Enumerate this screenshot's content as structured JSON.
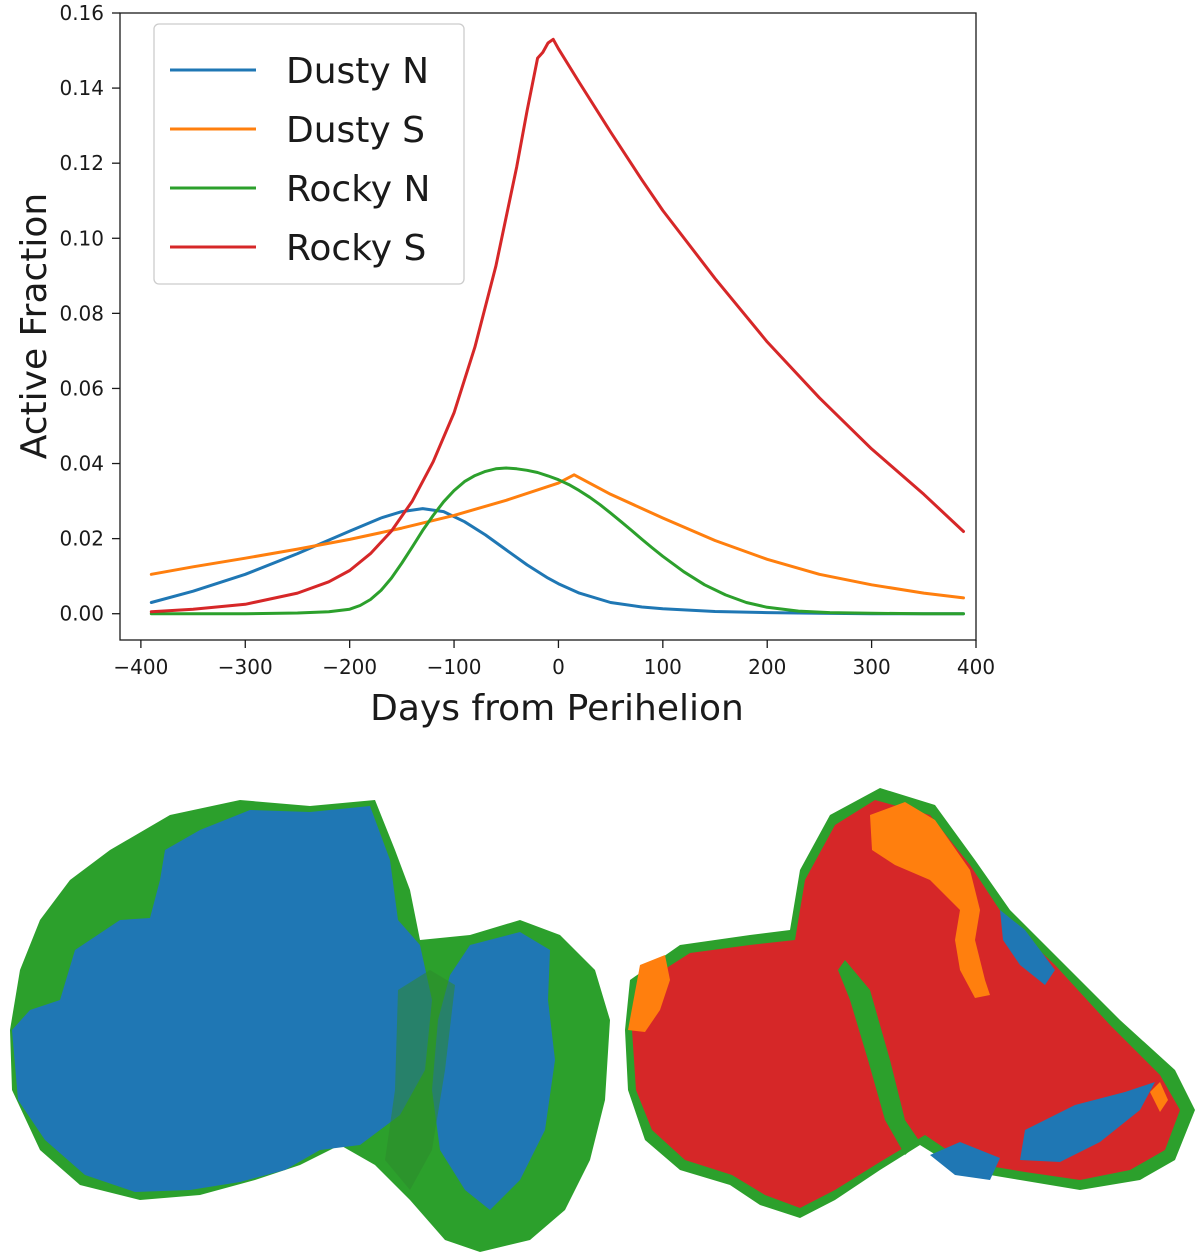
{
  "chart_data": {
    "type": "line",
    "title": "",
    "xlabel": "Days from Perihelion",
    "ylabel": "Active Fraction",
    "xlim": [
      -420,
      400
    ],
    "ylim": [
      -0.007,
      0.16
    ],
    "xticks": [
      -400,
      -300,
      -200,
      -100,
      0,
      100,
      200,
      300,
      400
    ],
    "xtick_labels": [
      "−400",
      "−300",
      "−200",
      "−100",
      "0",
      "100",
      "200",
      "300",
      "400"
    ],
    "yticks": [
      0.0,
      0.02,
      0.04,
      0.06,
      0.08,
      0.1,
      0.12,
      0.14,
      0.16
    ],
    "ytick_labels": [
      "0.00",
      "0.02",
      "0.04",
      "0.06",
      "0.08",
      "0.10",
      "0.12",
      "0.14",
      "0.16"
    ],
    "grid": false,
    "legend_position": "upper-left",
    "series": [
      {
        "name": "Dusty N",
        "color": "#1f77b4",
        "x": [
          -390,
          -350,
          -300,
          -250,
          -200,
          -170,
          -150,
          -130,
          -110,
          -90,
          -70,
          -50,
          -30,
          -10,
          0,
          20,
          50,
          80,
          100,
          150,
          200,
          250,
          300,
          350,
          388
        ],
        "y": [
          0.003,
          0.006,
          0.0105,
          0.016,
          0.022,
          0.0255,
          0.0272,
          0.028,
          0.0272,
          0.0245,
          0.021,
          0.017,
          0.013,
          0.0095,
          0.008,
          0.0055,
          0.003,
          0.0018,
          0.0013,
          0.0006,
          0.0003,
          0.0001,
          0.0,
          0.0,
          0.0
        ]
      },
      {
        "name": "Dusty S",
        "color": "#ff7f0e",
        "x": [
          -390,
          -350,
          -300,
          -250,
          -200,
          -150,
          -100,
          -50,
          0,
          15,
          50,
          100,
          150,
          200,
          250,
          300,
          350,
          388
        ],
        "y": [
          0.0105,
          0.0125,
          0.0148,
          0.0172,
          0.0198,
          0.0228,
          0.0262,
          0.0302,
          0.0348,
          0.037,
          0.0318,
          0.0255,
          0.0195,
          0.0145,
          0.0105,
          0.0077,
          0.0055,
          0.0042
        ]
      },
      {
        "name": "Rocky N",
        "color": "#2ca02c",
        "x": [
          -390,
          -300,
          -250,
          -220,
          -200,
          -190,
          -180,
          -170,
          -160,
          -150,
          -140,
          -130,
          -120,
          -110,
          -100,
          -90,
          -80,
          -70,
          -60,
          -50,
          -40,
          -30,
          -20,
          -10,
          0,
          10,
          20,
          30,
          40,
          50,
          60,
          70,
          80,
          90,
          100,
          120,
          140,
          160,
          180,
          200,
          230,
          260,
          300,
          350,
          388
        ],
        "y": [
          0.0,
          0.0,
          0.0002,
          0.0005,
          0.0012,
          0.0022,
          0.0038,
          0.0062,
          0.0095,
          0.0135,
          0.0178,
          0.0222,
          0.0262,
          0.0298,
          0.0328,
          0.0352,
          0.0368,
          0.0379,
          0.0386,
          0.0388,
          0.0386,
          0.0382,
          0.0376,
          0.0367,
          0.0357,
          0.0344,
          0.0328,
          0.031,
          0.029,
          0.0268,
          0.0245,
          0.0222,
          0.0198,
          0.0175,
          0.0153,
          0.0112,
          0.0077,
          0.005,
          0.003,
          0.0017,
          0.0007,
          0.0003,
          0.0001,
          0.0,
          0.0
        ]
      },
      {
        "name": "Rocky S",
        "color": "#d62728",
        "x": [
          -390,
          -350,
          -300,
          -250,
          -220,
          -200,
          -180,
          -160,
          -140,
          -120,
          -100,
          -80,
          -60,
          -40,
          -30,
          -20,
          -15,
          -10,
          -5,
          0,
          20,
          50,
          80,
          100,
          150,
          200,
          250,
          300,
          350,
          388
        ],
        "y": [
          0.0005,
          0.0012,
          0.0025,
          0.0055,
          0.0085,
          0.0115,
          0.016,
          0.022,
          0.03,
          0.0405,
          0.0535,
          0.071,
          0.0925,
          0.119,
          0.134,
          0.148,
          0.1495,
          0.152,
          0.153,
          0.1505,
          0.1415,
          0.1283,
          0.1155,
          0.1074,
          0.0893,
          0.0724,
          0.0575,
          0.0439,
          0.0318,
          0.0219
        ]
      }
    ]
  }
}
